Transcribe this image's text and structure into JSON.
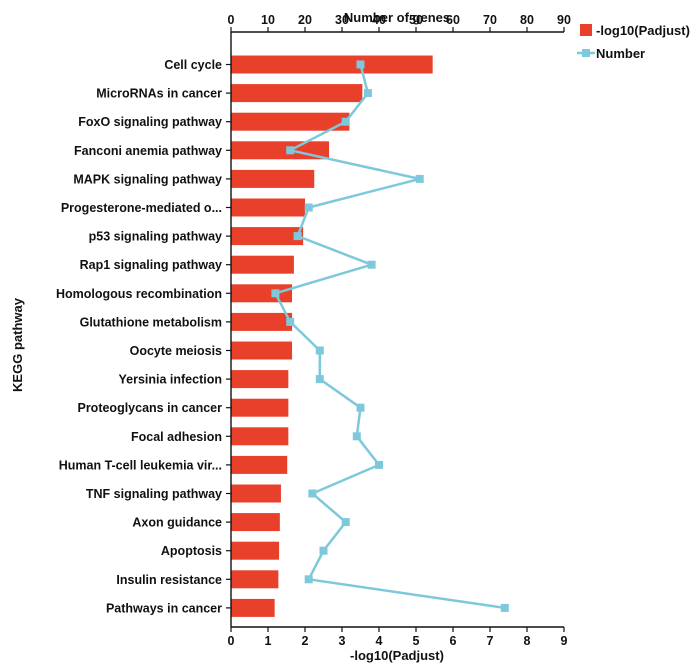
{
  "chart_data": {
    "type": "bar",
    "orientation": "horizontal",
    "title": "",
    "categories": [
      "Cell cycle",
      "MicroRNAs in cancer",
      "FoxO signaling pathway",
      "Fanconi anemia pathway",
      "MAPK signaling pathway",
      "Progesterone-mediated o...",
      "p53 signaling pathway",
      "Rap1 signaling pathway",
      "Homologous recombination",
      "Glutathione metabolism",
      "Oocyte meiosis",
      "Yersinia infection",
      "Proteoglycans in cancer",
      "Focal adhesion",
      "Human T-cell leukemia vir...",
      "TNF signaling pathway",
      "Axon guidance",
      "Apoptosis",
      "Insulin resistance",
      "Pathways in cancer"
    ],
    "series": [
      {
        "name": "-log10(Padjust)",
        "kind": "bar",
        "axis": "bottom",
        "color": "#e8402a",
        "values": [
          5.45,
          3.55,
          3.2,
          2.65,
          2.25,
          2.0,
          1.95,
          1.7,
          1.65,
          1.65,
          1.65,
          1.55,
          1.55,
          1.55,
          1.52,
          1.35,
          1.32,
          1.3,
          1.28,
          1.18
        ]
      },
      {
        "name": "Number",
        "kind": "line",
        "axis": "top",
        "color": "#7ec8dc",
        "values": [
          35,
          37,
          31,
          16,
          51,
          21,
          18,
          38,
          12,
          16,
          24,
          24,
          35,
          34,
          40,
          22,
          31,
          25,
          21,
          74
        ]
      }
    ],
    "x_bottom": {
      "label": "-log10(Padjust)",
      "range": [
        0,
        9
      ],
      "ticks": [
        "0",
        "1",
        "2",
        "3",
        "4",
        "5",
        "6",
        "7",
        "8",
        "9"
      ]
    },
    "x_top": {
      "label": "Number of genes",
      "range": [
        0,
        90
      ],
      "ticks": [
        "0",
        "10",
        "20",
        "30",
        "40",
        "50",
        "60",
        "70",
        "80",
        "90"
      ]
    },
    "ylabel": "KEGG pathway",
    "grid": false,
    "legend_position": "top-right"
  }
}
